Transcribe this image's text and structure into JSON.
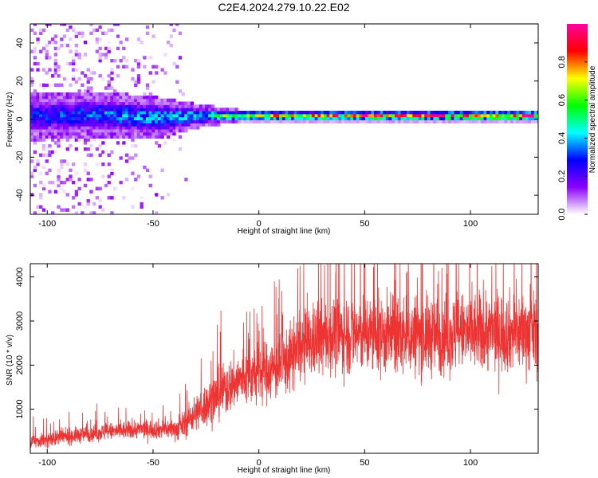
{
  "title": "C2E4.2024.279.10.22.E02",
  "chart_data": [
    {
      "type": "heatmap",
      "xlabel": "Height of straight line (km)",
      "ylabel": "Frequency (Hz)",
      "xlim": [
        -108,
        132
      ],
      "ylim": [
        -50,
        50
      ],
      "x_ticks": [
        -100,
        -50,
        0,
        50,
        100
      ],
      "y_ticks": [
        -40,
        -20,
        0,
        20,
        40
      ],
      "colorbar": {
        "label": "Normalized spectral amplitude",
        "range": [
          0,
          1
        ],
        "ticks": [
          "0.0",
          "0.2",
          "0.4",
          "0.6",
          "0.8"
        ],
        "colormap": [
          "#ffffff",
          "#8b00ff",
          "#0000ff",
          "#00ffff",
          "#00ff00",
          "#ffff00",
          "#ff0000",
          "#ff00a0"
        ]
      },
      "band_center_hz": [
        {
          "x": -108,
          "y": 1
        },
        {
          "x": -80,
          "y": 2
        },
        {
          "x": -50,
          "y": 0
        },
        {
          "x": -30,
          "y": 1
        },
        {
          "x": 0,
          "y": 1
        },
        {
          "x": 50,
          "y": 1
        },
        {
          "x": 100,
          "y": 1
        },
        {
          "x": 132,
          "y": 1
        }
      ],
      "band_halfwidth_hz": [
        {
          "x": -108,
          "y": 8
        },
        {
          "x": -50,
          "y": 7
        },
        {
          "x": -30,
          "y": 4
        },
        {
          "x": -10,
          "y": 2
        },
        {
          "x": 132,
          "y": 2
        }
      ],
      "band_peak_amplitude": [
        {
          "x": -108,
          "y": 0.3
        },
        {
          "x": -60,
          "y": 0.4
        },
        {
          "x": -35,
          "y": 0.45
        },
        {
          "x": -20,
          "y": 0.55
        },
        {
          "x": -5,
          "y": 0.85
        },
        {
          "x": 132,
          "y": 0.95
        }
      ],
      "background_noise_extent_x": [
        -108,
        -35
      ]
    },
    {
      "type": "line",
      "xlabel": "Height of straight line (km)",
      "ylabel": "SNR (10 * v/v)",
      "xlim": [
        -108,
        132
      ],
      "ylim": [
        0,
        4300
      ],
      "x_ticks": [
        -100,
        -50,
        0,
        50,
        100
      ],
      "y_ticks": [
        1000,
        2000,
        3000,
        4000
      ],
      "color": "#ee3333",
      "trend": [
        {
          "x": -108,
          "y": 250
        },
        {
          "x": -80,
          "y": 450
        },
        {
          "x": -55,
          "y": 550
        },
        {
          "x": -38,
          "y": 550
        },
        {
          "x": -30,
          "y": 900
        },
        {
          "x": -20,
          "y": 1300
        },
        {
          "x": -10,
          "y": 1650
        },
        {
          "x": 0,
          "y": 1800
        },
        {
          "x": 10,
          "y": 1950
        },
        {
          "x": 20,
          "y": 2400
        },
        {
          "x": 35,
          "y": 2700
        },
        {
          "x": 50,
          "y": 2700
        },
        {
          "x": 70,
          "y": 2650
        },
        {
          "x": 90,
          "y": 2700
        },
        {
          "x": 110,
          "y": 2750
        },
        {
          "x": 132,
          "y": 2750
        }
      ],
      "fluctuation_amplitude": [
        {
          "x": -108,
          "y": 250
        },
        {
          "x": -40,
          "y": 350
        },
        {
          "x": -20,
          "y": 900
        },
        {
          "x": 10,
          "y": 1100
        },
        {
          "x": 40,
          "y": 1400
        },
        {
          "x": 132,
          "y": 1400
        }
      ]
    }
  ]
}
